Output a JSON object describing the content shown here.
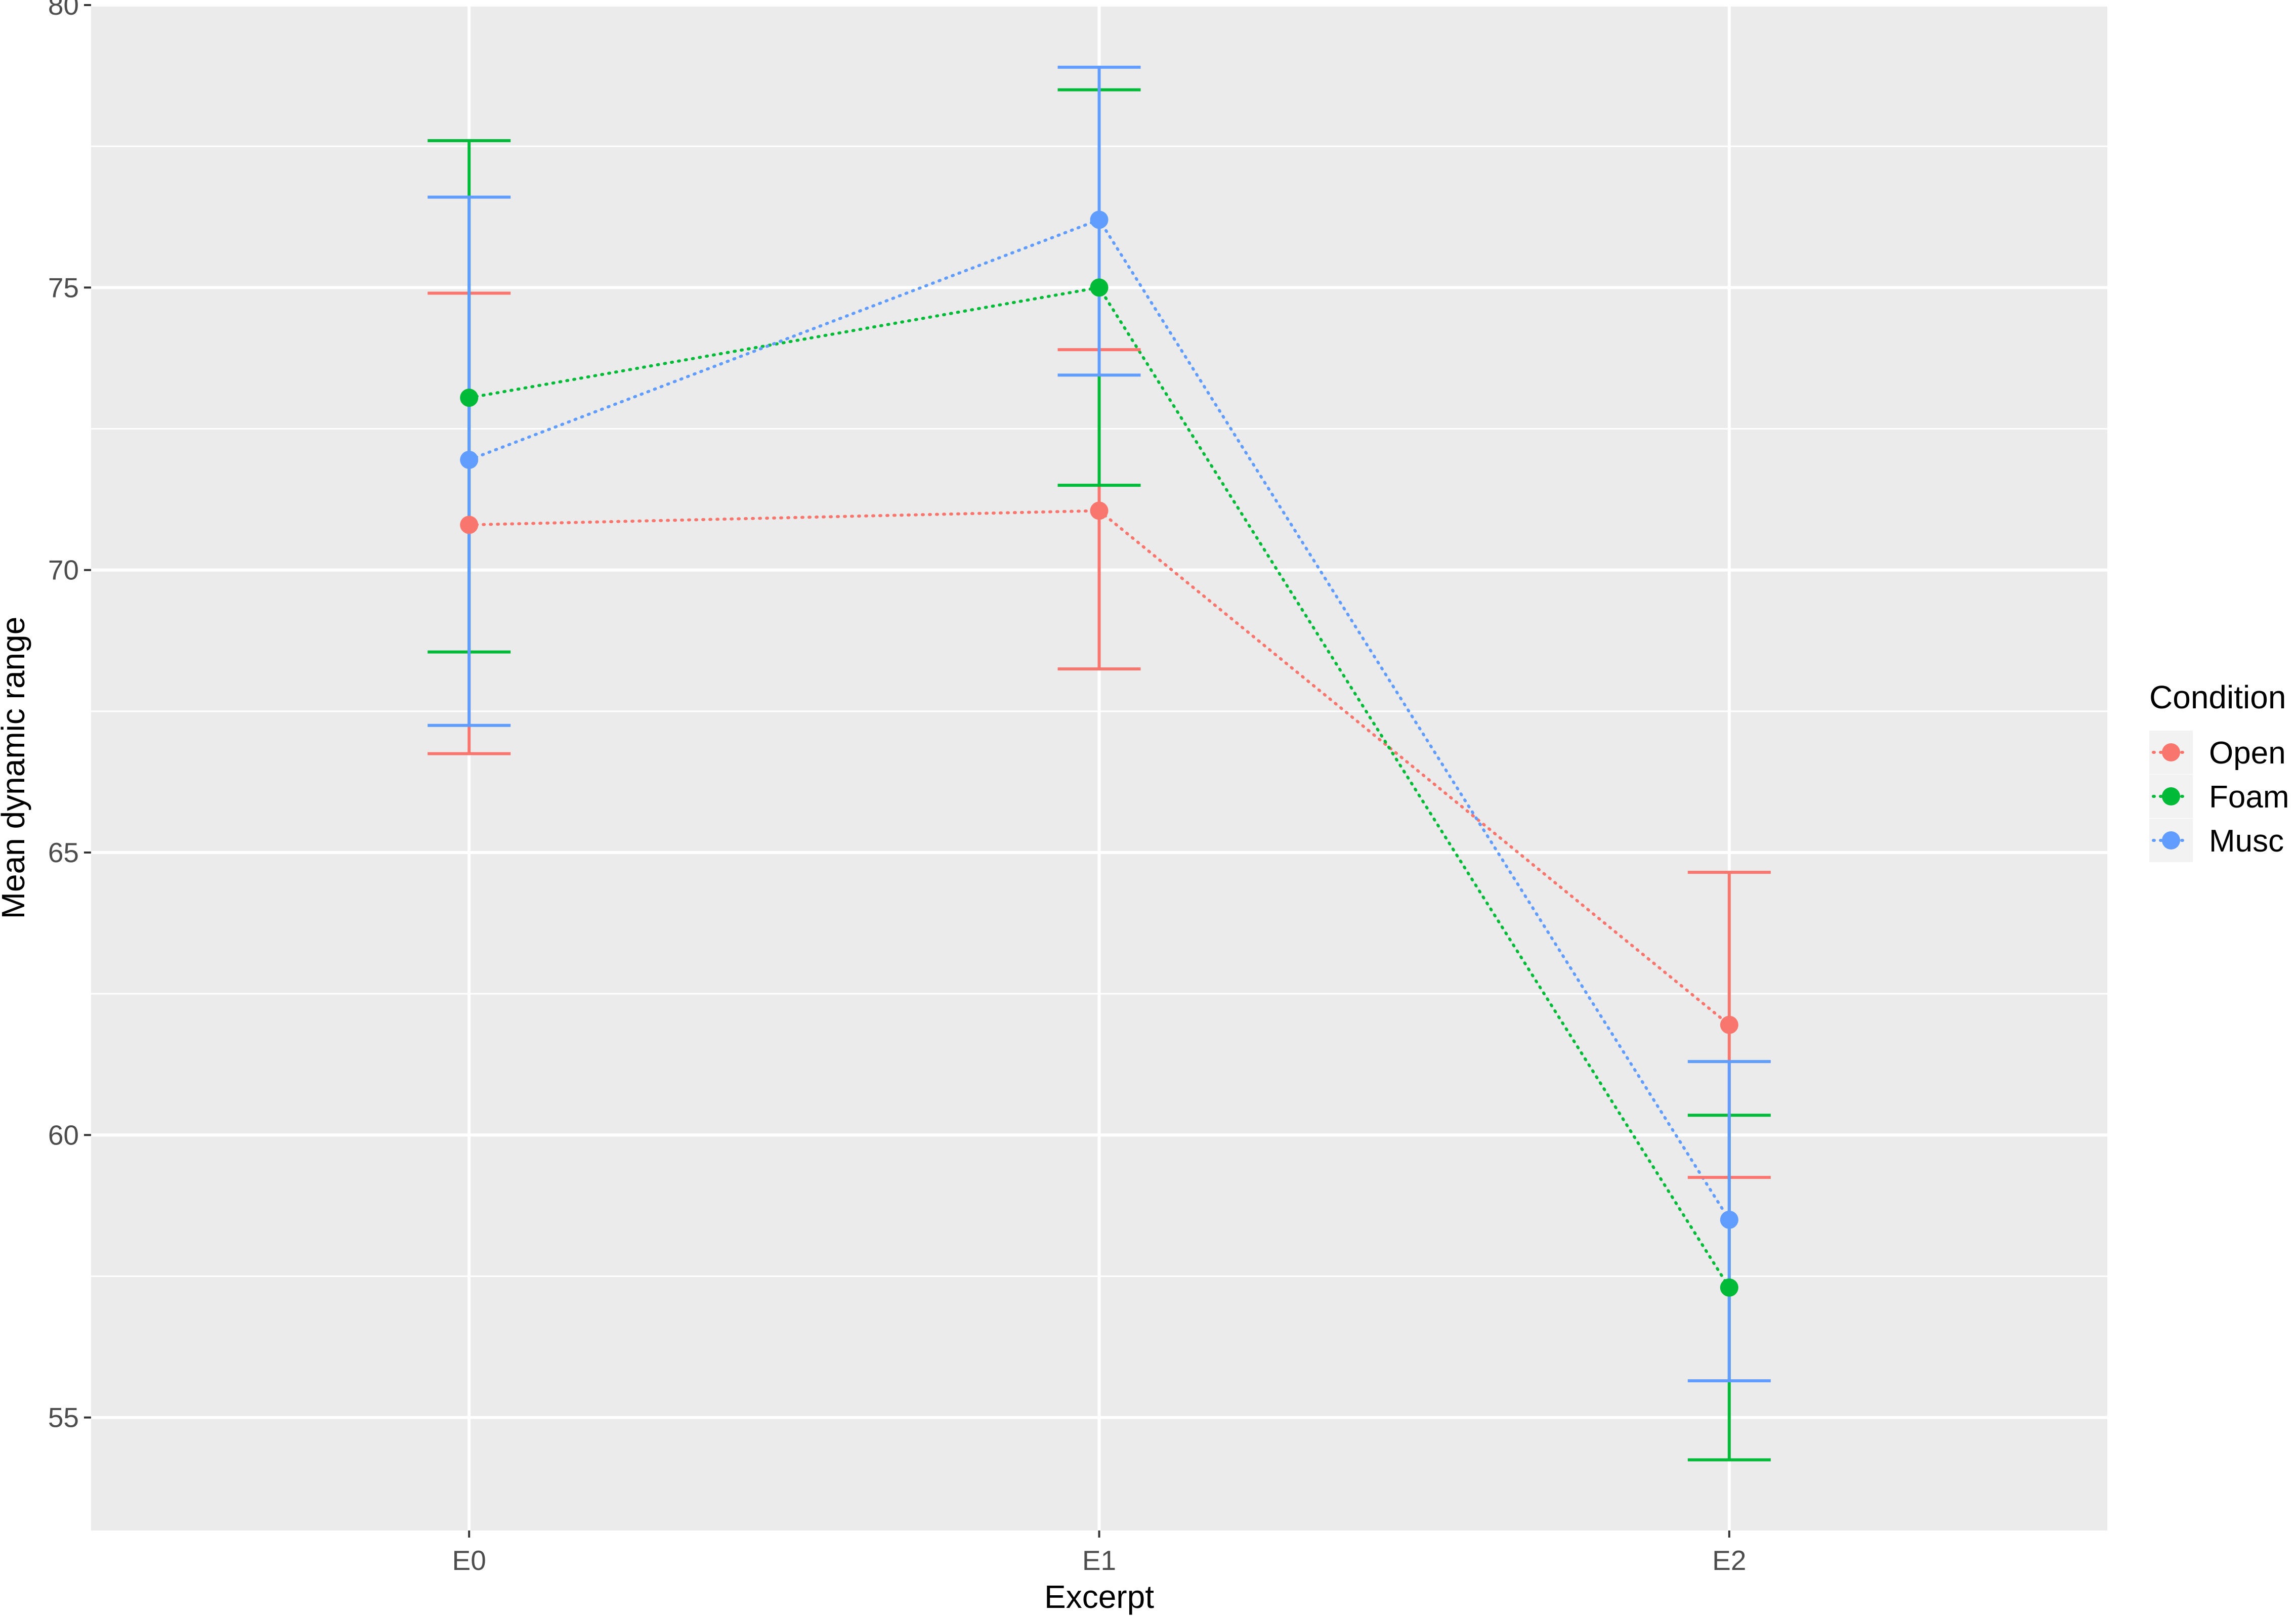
{
  "chart_data": {
    "type": "line",
    "title": "",
    "xlabel": "Excerpt",
    "ylabel": "Mean dynamic range",
    "categories": [
      "E0",
      "E1",
      "E2"
    ],
    "ylim": [
      53,
      80
    ],
    "yticks": [
      55,
      60,
      65,
      70,
      75,
      80
    ],
    "grid": true,
    "legend": {
      "title": "Condition",
      "position": "right"
    },
    "series": [
      {
        "name": "Open",
        "color": "#F8766D",
        "values": [
          70.8,
          71.05,
          61.95
        ],
        "error_low": [
          66.75,
          68.25,
          59.25
        ],
        "error_high": [
          74.9,
          73.9,
          64.65
        ]
      },
      {
        "name": "Foam",
        "color": "#00BA38",
        "values": [
          73.05,
          75.0,
          57.3
        ],
        "error_low": [
          68.55,
          71.5,
          54.25
        ],
        "error_high": [
          77.6,
          78.5,
          60.35
        ]
      },
      {
        "name": "Musc",
        "color": "#619CFF",
        "values": [
          71.95,
          76.2,
          58.5
        ],
        "error_low": [
          67.25,
          73.45,
          55.65
        ],
        "error_high": [
          76.6,
          78.9,
          61.3
        ]
      }
    ]
  }
}
